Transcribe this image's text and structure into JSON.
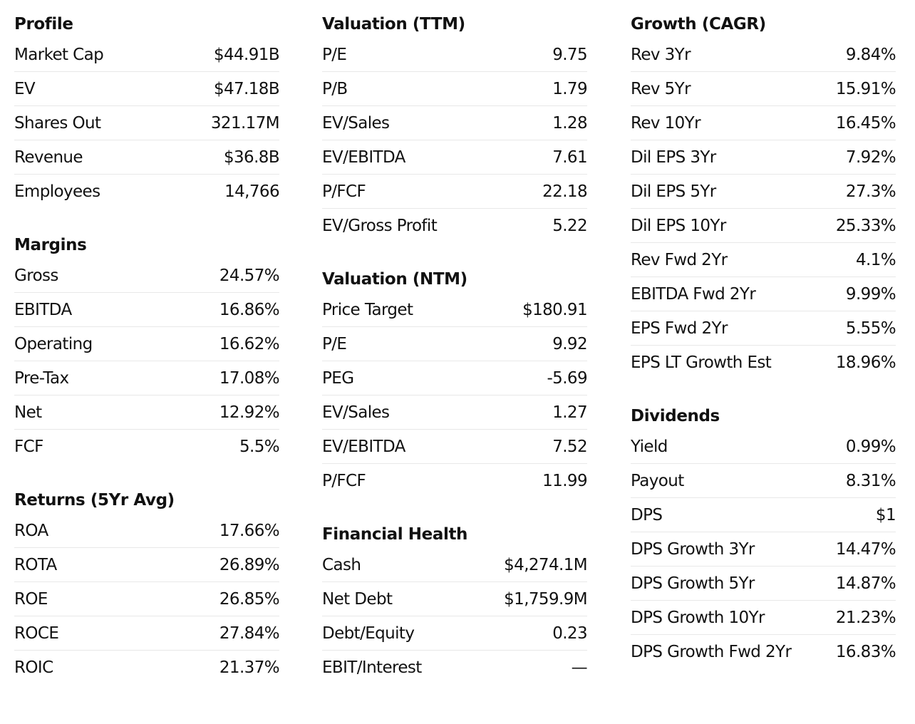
{
  "columns": [
    {
      "sections": [
        {
          "title": "Profile",
          "rows": [
            {
              "label": "Market Cap",
              "value": "$44.91B"
            },
            {
              "label": "EV",
              "value": "$47.18B"
            },
            {
              "label": "Shares Out",
              "value": "321.17M"
            },
            {
              "label": "Revenue",
              "value": "$36.8B"
            },
            {
              "label": "Employees",
              "value": "14,766"
            }
          ]
        },
        {
          "title": "Margins",
          "rows": [
            {
              "label": "Gross",
              "value": "24.57%"
            },
            {
              "label": "EBITDA",
              "value": "16.86%"
            },
            {
              "label": "Operating",
              "value": "16.62%"
            },
            {
              "label": "Pre-Tax",
              "value": "17.08%"
            },
            {
              "label": "Net",
              "value": "12.92%"
            },
            {
              "label": "FCF",
              "value": "5.5%"
            }
          ]
        },
        {
          "title": "Returns (5Yr Avg)",
          "rows": [
            {
              "label": "ROA",
              "value": "17.66%"
            },
            {
              "label": "ROTA",
              "value": "26.89%"
            },
            {
              "label": "ROE",
              "value": "26.85%"
            },
            {
              "label": "ROCE",
              "value": "27.84%"
            },
            {
              "label": "ROIC",
              "value": "21.37%"
            }
          ]
        }
      ]
    },
    {
      "sections": [
        {
          "title": "Valuation (TTM)",
          "rows": [
            {
              "label": "P/E",
              "value": "9.75"
            },
            {
              "label": "P/B",
              "value": "1.79"
            },
            {
              "label": "EV/Sales",
              "value": "1.28"
            },
            {
              "label": "EV/EBITDA",
              "value": "7.61"
            },
            {
              "label": "P/FCF",
              "value": "22.18"
            },
            {
              "label": "EV/Gross Profit",
              "value": "5.22"
            }
          ]
        },
        {
          "title": "Valuation (NTM)",
          "rows": [
            {
              "label": "Price Target",
              "value": "$180.91"
            },
            {
              "label": "P/E",
              "value": "9.92"
            },
            {
              "label": "PEG",
              "value": "-5.69"
            },
            {
              "label": "EV/Sales",
              "value": "1.27"
            },
            {
              "label": "EV/EBITDA",
              "value": "7.52"
            },
            {
              "label": "P/FCF",
              "value": "11.99"
            }
          ]
        },
        {
          "title": "Financial Health",
          "rows": [
            {
              "label": "Cash",
              "value": "$4,274.1M"
            },
            {
              "label": "Net Debt",
              "value": "$1,759.9M"
            },
            {
              "label": "Debt/Equity",
              "value": "0.23"
            },
            {
              "label": "EBIT/Interest",
              "value": "—"
            }
          ]
        }
      ]
    },
    {
      "sections": [
        {
          "title": "Growth (CAGR)",
          "rows": [
            {
              "label": "Rev 3Yr",
              "value": "9.84%"
            },
            {
              "label": "Rev 5Yr",
              "value": "15.91%"
            },
            {
              "label": "Rev 10Yr",
              "value": "16.45%"
            },
            {
              "label": "Dil EPS 3Yr",
              "value": "7.92%"
            },
            {
              "label": "Dil EPS 5Yr",
              "value": "27.3%"
            },
            {
              "label": "Dil EPS 10Yr",
              "value": "25.33%"
            },
            {
              "label": "Rev Fwd 2Yr",
              "value": "4.1%"
            },
            {
              "label": "EBITDA Fwd 2Yr",
              "value": "9.99%"
            },
            {
              "label": "EPS Fwd 2Yr",
              "value": "5.55%"
            },
            {
              "label": "EPS LT Growth Est",
              "value": "18.96%"
            }
          ]
        },
        {
          "title": "Dividends",
          "rows": [
            {
              "label": "Yield",
              "value": "0.99%"
            },
            {
              "label": "Payout",
              "value": "8.31%"
            },
            {
              "label": "DPS",
              "value": "$1"
            },
            {
              "label": "DPS Growth 3Yr",
              "value": "14.47%"
            },
            {
              "label": "DPS Growth 5Yr",
              "value": "14.87%"
            },
            {
              "label": "DPS Growth 10Yr",
              "value": "21.23%"
            },
            {
              "label": "DPS Growth Fwd 2Yr",
              "value": "16.83%"
            }
          ]
        }
      ]
    }
  ]
}
